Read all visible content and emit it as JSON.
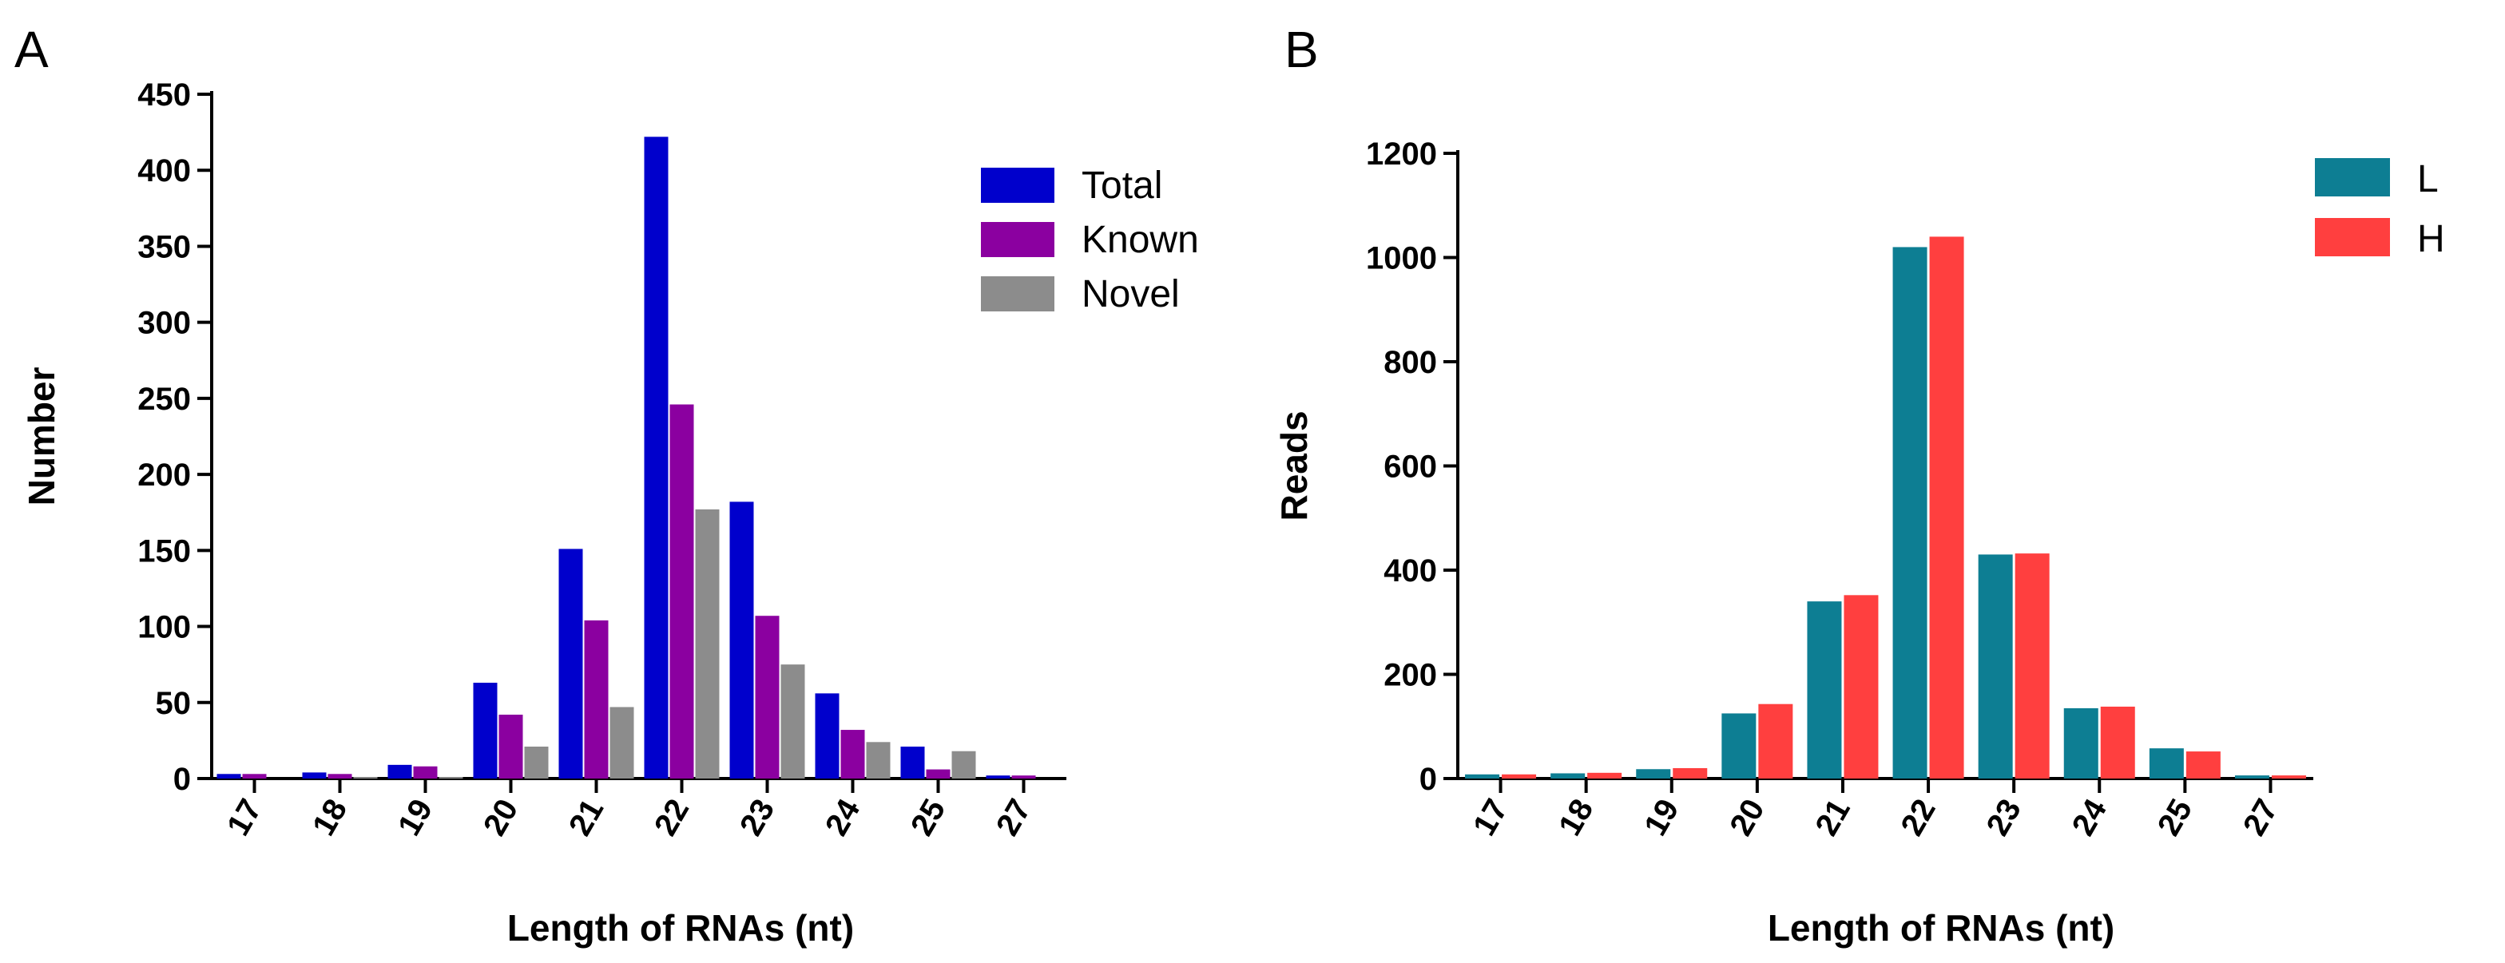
{
  "panels": {
    "a": {
      "letter": "A"
    },
    "b": {
      "letter": "B"
    }
  },
  "chart_data": [
    {
      "id": "a",
      "type": "bar",
      "title": "",
      "xlabel": "Length of RNAs (nt)",
      "ylabel": "Number",
      "categories": [
        "17",
        "18",
        "19",
        "20",
        "21",
        "22",
        "23",
        "24",
        "25",
        "27"
      ],
      "ylim": [
        0,
        450
      ],
      "yticks": [
        0,
        50,
        100,
        150,
        200,
        250,
        300,
        350,
        400,
        450
      ],
      "grid": false,
      "legend_position": "top-right",
      "series": [
        {
          "name": "Total",
          "color": "#0000cc",
          "values": [
            3,
            4,
            9,
            63,
            151,
            422,
            182,
            56,
            21,
            2
          ]
        },
        {
          "name": "Known",
          "color": "#8b00a0",
          "values": [
            3,
            3,
            8,
            42,
            104,
            246,
            107,
            32,
            6,
            2
          ]
        },
        {
          "name": "Novel",
          "color": "#8c8c8c",
          "values": [
            0,
            1,
            1,
            21,
            47,
            177,
            75,
            24,
            18,
            0
          ]
        }
      ]
    },
    {
      "id": "b",
      "type": "bar",
      "title": "",
      "xlabel": "Length of RNAs (nt)",
      "ylabel": "Reads",
      "categories": [
        "17",
        "18",
        "19",
        "20",
        "21",
        "22",
        "23",
        "24",
        "25",
        "27"
      ],
      "ylim": [
        0,
        1200
      ],
      "yticks": [
        0,
        200,
        400,
        600,
        800,
        1000,
        1200
      ],
      "grid": false,
      "legend_position": "top-right",
      "series": [
        {
          "name": "L",
          "color": "#0d7e93",
          "values": [
            8,
            10,
            18,
            125,
            340,
            1020,
            430,
            135,
            58,
            6
          ]
        },
        {
          "name": "H",
          "color": "#ff3f3f",
          "values": [
            8,
            11,
            20,
            143,
            352,
            1040,
            432,
            138,
            52,
            6
          ]
        }
      ]
    }
  ]
}
